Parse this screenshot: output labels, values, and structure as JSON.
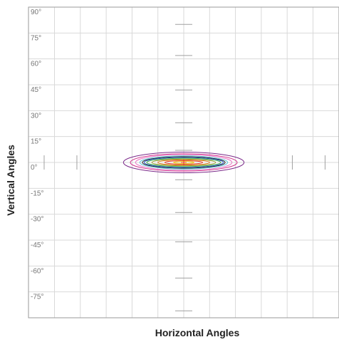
{
  "chart_data": {
    "type": "contour",
    "xlabel": "Horizontal Angles",
    "ylabel": "Vertical Angles",
    "xlim": [
      -90,
      90
    ],
    "ylim": [
      -90,
      90
    ],
    "grid": true,
    "y_tick_labels": [
      "90°",
      "75°",
      "60°",
      "45°",
      "30°",
      "15°",
      "0°",
      "-15°",
      "-30°",
      "-45°",
      "-60°",
      "-75°"
    ],
    "y_ticks": [
      90,
      75,
      60,
      45,
      30,
      15,
      0,
      -15,
      -30,
      -45,
      -60,
      -75
    ],
    "x_gridlines": [
      -75,
      -60,
      -45,
      -30,
      -15,
      0,
      15,
      30,
      45,
      60,
      75,
      90
    ],
    "contours": [
      {
        "color": "#7b2a8a",
        "x_half_width": 35,
        "y_half_height": 6
      },
      {
        "color": "#d0308a",
        "x_half_width": 31,
        "y_half_height": 5
      },
      {
        "color": "#e879c7",
        "x_half_width": 28,
        "y_half_height": 4.5
      },
      {
        "color": "#5fc8d8",
        "x_half_width": 25.5,
        "y_half_height": 3.8
      },
      {
        "color": "#1a1a1a",
        "x_half_width": 24,
        "y_half_height": 3.3
      },
      {
        "color": "#2f5fd0",
        "x_half_width": 23,
        "y_half_height": 2.9
      },
      {
        "color": "#3aa845",
        "x_half_width": 21.5,
        "y_half_height": 2.4
      },
      {
        "color": "#9a9a2a",
        "x_half_width": 18.5,
        "y_half_height": 1.9
      },
      {
        "color": "#e07a1a",
        "x_half_width": 15,
        "y_half_height": 1.5
      },
      {
        "color": "#e23a2a",
        "x_half_width": 11,
        "y_half_height": 1.0
      },
      {
        "color": "#f0d020",
        "x_half_width": 6,
        "y_half_height": 0.6
      }
    ],
    "center": [
      0,
      0
    ]
  }
}
